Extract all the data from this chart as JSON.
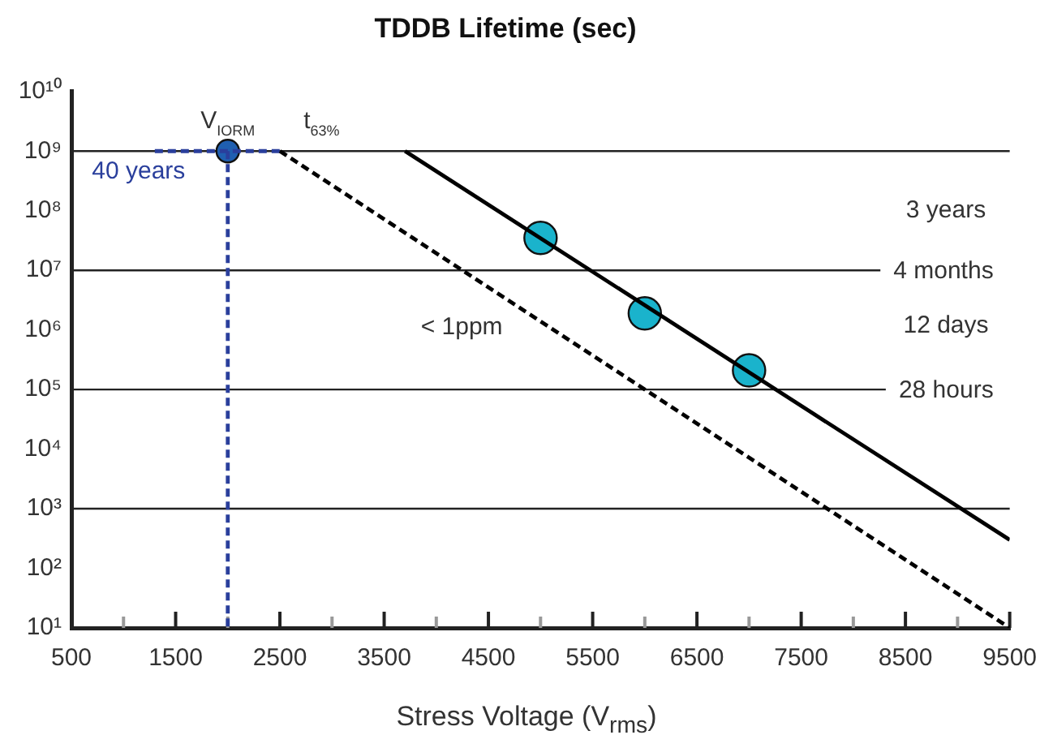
{
  "chart_data": {
    "type": "line",
    "title": "TDDB Lifetime (sec)",
    "xlabel": "Stress Voltage (V$_{rms}$)",
    "log": "y",
    "grid": false,
    "legend": false,
    "xlim": [
      500,
      9500
    ],
    "xticks": [
      500,
      {
        "value": 1000,
        "label": null
      },
      1500,
      {
        "value": 2000,
        "label": null
      },
      2500,
      {
        "value": 3000,
        "label": null
      },
      3500,
      {
        "value": 4000,
        "label": null
      },
      4500,
      {
        "value": 5000,
        "label": null
      },
      5500,
      {
        "value": 6000,
        "label": null
      },
      6500,
      {
        "value": 7000,
        "label": null
      },
      7500,
      {
        "value": 8000,
        "label": null
      },
      8500,
      {
        "value": 9000,
        "label": null
      },
      9500
    ],
    "ylim": [
      10,
      10000000000
    ],
    "yticks": [
      {
        "value": 10,
        "label": "10¹"
      },
      {
        "value": 100,
        "label": "10²"
      },
      {
        "value": 1000,
        "label": "10³"
      },
      {
        "value": 10000,
        "label": "10⁴"
      },
      {
        "value": 100000,
        "label": "10⁵"
      },
      {
        "value": 1000000,
        "label": "10⁶"
      },
      {
        "value": 10000000,
        "label": "10⁷"
      },
      {
        "value": 100000000,
        "label": "10⁸"
      },
      {
        "value": 1000000000,
        "label": "10⁹"
      },
      {
        "value": 10000000000,
        "label": "10¹⁰"
      }
    ],
    "series": [
      {
        "type": "line",
        "color": "#000000",
        "line_style": "solid",
        "marker": "none",
        "x": [
          3700,
          9500
        ],
        "values": [
          1000000000,
          300
        ]
      },
      {
        "type": "line",
        "color": "#000000",
        "line_style": "dashed",
        "marker": "none",
        "x": [
          2500,
          9500
        ],
        "values": [
          1000000000,
          10
        ]
      },
      {
        "type": "scatter",
        "color": "#1ab3cc",
        "marker": "circle",
        "x": [
          5000,
          6000,
          7000
        ],
        "values": [
          35000000,
          1900000,
          210000
        ]
      },
      {
        "type": "line",
        "color": "#2a3f9c",
        "line_style": "dashed",
        "marker": "none",
        "x": [
          1300,
          2500
        ],
        "values": [
          1000000000,
          1000000000
        ]
      },
      {
        "type": "line",
        "color": "#2a3f9c",
        "line_style": "dashed",
        "marker": "none",
        "x": [
          2000,
          2000
        ],
        "values": [
          1000000000,
          10
        ]
      },
      {
        "type": "scatter",
        "color": "#1f5fb0",
        "marker": "circle",
        "x": [
          2000
        ],
        "values": [
          1000000000
        ]
      }
    ],
    "ref_lines": [
      {
        "axis": "y",
        "value": 1000000000,
        "label": null
      },
      {
        "axis": "y",
        "value": 10000000,
        "label": "4 months"
      },
      {
        "axis": "y",
        "value": 100000,
        "label": "28 hours"
      },
      {
        "axis": "y",
        "value": 1000,
        "label": null
      }
    ],
    "annotations": [
      {
        "text": "V$_{IORM}$",
        "x": 2000,
        "y": 1000000000
      },
      {
        "text": "t$_{63%}$",
        "x": 2900,
        "y": 1000000000
      },
      {
        "text": "40 years",
        "x": 1300,
        "y": 1000000000
      },
      "< 1ppm",
      "3 years",
      "12 days"
    ]
  }
}
